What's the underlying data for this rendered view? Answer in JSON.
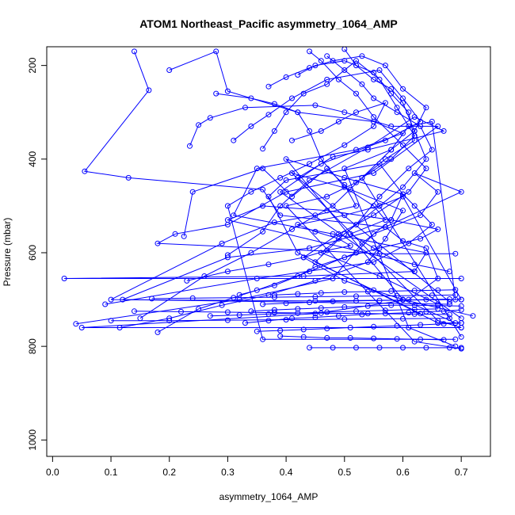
{
  "chart_data": {
    "type": "line",
    "title": "ATOM1 Northeast_Pacific asymmetry_1064_AMP",
    "xlabel": "asymmetry_1064_AMP",
    "ylabel": "Pressure (mbar)",
    "xlim": [
      -0.01,
      0.75
    ],
    "ylim": [
      1035,
      160
    ],
    "y_reversed": true,
    "grid": false,
    "xticks": [
      0.0,
      0.1,
      0.2,
      0.3,
      0.4,
      0.5,
      0.6,
      0.7
    ],
    "xtick_labels": [
      "0.0",
      "0.1",
      "0.2",
      "0.3",
      "0.4",
      "0.5",
      "0.6",
      "0.7"
    ],
    "yticks": [
      200,
      400,
      600,
      800,
      1000
    ],
    "ytick_labels": [
      "200",
      "400",
      "600",
      "800",
      "1000"
    ],
    "series_color": "#0000ff",
    "marker": "open-circle",
    "series": [
      {
        "x": [
          0.14,
          0.165,
          0.055,
          0.13,
          0.36,
          0.39,
          0.57,
          0.6,
          0.64,
          0.66,
          0.61,
          0.45,
          0.05,
          0.7
        ],
        "y": [
          170,
          253,
          426,
          440,
          465,
          520,
          545,
          575,
          590,
          655,
          700,
          730,
          760,
          760
        ]
      },
      {
        "x": [
          0.2,
          0.28,
          0.3,
          0.42,
          0.55,
          0.6,
          0.52,
          0.35,
          0.31,
          0.48,
          0.64,
          0.62,
          0.43,
          0.02,
          0.7
        ],
        "y": [
          210,
          170,
          255,
          300,
          320,
          345,
          380,
          420,
          520,
          560,
          600,
          640,
          650,
          655,
          655
        ]
      },
      {
        "x": [
          0.235,
          0.25,
          0.27,
          0.33,
          0.45,
          0.5,
          0.58,
          0.66,
          0.55,
          0.4,
          0.3,
          0.21,
          0.18,
          0.56,
          0.69
        ],
        "y": [
          372,
          327,
          312,
          290,
          285,
          300,
          330,
          330,
          430,
          470,
          540,
          560,
          580,
          602,
          602
        ]
      },
      {
        "x": [
          0.225,
          0.24,
          0.36,
          0.41,
          0.47,
          0.5,
          0.52,
          0.45,
          0.38,
          0.29,
          0.1,
          0.45,
          0.7
        ],
        "y": [
          565,
          470,
          420,
          480,
          420,
          455,
          500,
          520,
          535,
          580,
          700,
          703,
          700
        ]
      },
      {
        "x": [
          0.18,
          0.25,
          0.35,
          0.44,
          0.52,
          0.55,
          0.63,
          0.66,
          0.62,
          0.7,
          0.57,
          0.44,
          0.3,
          0.12,
          0.68
        ],
        "y": [
          770,
          720,
          680,
          640,
          600,
          560,
          520,
          470,
          430,
          470,
          545,
          590,
          610,
          700,
          710
        ]
      },
      {
        "x": [
          0.09,
          0.35,
          0.55,
          0.61,
          0.65,
          0.62,
          0.6,
          0.5,
          0.4,
          0.6,
          0.72
        ],
        "y": [
          710,
          655,
          620,
          580,
          540,
          500,
          475,
          440,
          400,
          700,
          735
        ]
      },
      {
        "x": [
          0.04,
          0.32,
          0.48,
          0.53,
          0.58,
          0.6,
          0.56,
          0.4,
          0.37,
          0.42,
          0.66,
          0.7
        ],
        "y": [
          752,
          700,
          655,
          580,
          530,
          475,
          410,
          445,
          480,
          600,
          750,
          750
        ]
      },
      {
        "x": [
          0.115,
          0.2,
          0.29,
          0.37,
          0.45,
          0.54,
          0.57,
          0.6,
          0.51,
          0.41,
          0.66,
          0.7
        ],
        "y": [
          760,
          740,
          712,
          690,
          660,
          620,
          570,
          510,
          465,
          430,
          745,
          760
        ]
      },
      {
        "x": [
          0.15,
          0.26,
          0.34,
          0.41,
          0.48,
          0.53,
          0.58,
          0.61,
          0.65,
          0.69
        ],
        "y": [
          740,
          650,
          600,
          550,
          500,
          440,
          380,
          330,
          320,
          700
        ]
      },
      {
        "x": [
          0.3,
          0.36,
          0.39,
          0.44,
          0.54,
          0.62,
          0.67,
          0.54,
          0.48,
          0.42,
          0.68
        ],
        "y": [
          605,
          555,
          500,
          445,
          375,
          310,
          340,
          380,
          395,
          440,
          705
        ]
      },
      {
        "x": [
          0.31,
          0.34,
          0.37,
          0.41,
          0.47,
          0.56,
          0.6,
          0.63,
          0.57,
          0.46,
          0.39,
          0.7
        ],
        "y": [
          360,
          330,
          305,
          270,
          230,
          210,
          270,
          320,
          360,
          410,
          470,
          740
        ]
      },
      {
        "x": [
          0.36,
          0.38,
          0.4,
          0.43,
          0.47,
          0.52,
          0.56,
          0.59,
          0.62,
          0.58,
          0.53,
          0.7
        ],
        "y": [
          378,
          340,
          300,
          260,
          240,
          190,
          230,
          290,
          350,
          400,
          440,
          780
        ]
      },
      {
        "x": [
          0.37,
          0.4,
          0.44,
          0.48,
          0.53,
          0.57,
          0.6,
          0.64,
          0.62,
          0.58,
          0.5,
          0.61,
          0.69
        ],
        "y": [
          245,
          225,
          205,
          190,
          180,
          200,
          250,
          290,
          340,
          380,
          420,
          760,
          800
        ]
      },
      {
        "x": [
          0.42,
          0.45,
          0.5,
          0.55,
          0.58,
          0.61,
          0.62,
          0.57,
          0.52,
          0.47,
          0.4,
          0.62,
          0.7
        ],
        "y": [
          220,
          200,
          190,
          215,
          260,
          300,
          360,
          400,
          450,
          480,
          500,
          790,
          805
        ]
      },
      {
        "x": [
          0.41,
          0.46,
          0.49,
          0.52,
          0.57,
          0.55,
          0.5,
          0.44,
          0.39,
          0.34,
          0.3,
          0.36,
          0.69
        ],
        "y": [
          360,
          340,
          320,
          300,
          280,
          330,
          370,
          410,
          440,
          470,
          500,
          785,
          785
        ]
      },
      {
        "x": [
          0.28,
          0.34,
          0.38,
          0.42,
          0.44,
          0.46,
          0.5,
          0.55,
          0.57,
          0.51,
          0.55,
          0.62
        ],
        "y": [
          260,
          270,
          282,
          300,
          340,
          400,
          460,
          500,
          530,
          560,
          590,
          640
        ]
      },
      {
        "x": [
          0.23,
          0.3,
          0.37,
          0.43,
          0.47,
          0.51,
          0.49,
          0.45,
          0.42,
          0.5,
          0.56,
          0.6,
          0.7
        ],
        "y": [
          660,
          640,
          625,
          610,
          595,
          585,
          570,
          555,
          540,
          520,
          500,
          480,
          700
        ]
      },
      {
        "x": [
          0.32,
          0.38,
          0.42,
          0.45,
          0.5,
          0.56,
          0.63,
          0.66,
          0.58,
          0.47,
          0.36,
          0.3,
          0.62,
          0.68
        ],
        "y": [
          690,
          670,
          650,
          630,
          610,
          590,
          570,
          550,
          530,
          510,
          500,
          530,
          625,
          640
        ]
      },
      {
        "x": [
          0.44,
          0.46,
          0.49,
          0.52,
          0.55,
          0.6,
          0.64,
          0.61,
          0.55,
          0.49,
          0.43,
          0.5,
          0.6,
          0.69
        ],
        "y": [
          170,
          190,
          230,
          260,
          310,
          370,
          420,
          470,
          520,
          560,
          610,
          660,
          700,
          750
        ]
      },
      {
        "x": [
          0.47,
          0.5,
          0.53,
          0.55,
          0.59,
          0.63,
          0.65,
          0.61,
          0.56,
          0.52,
          0.46,
          0.56,
          0.66
        ],
        "y": [
          180,
          210,
          240,
          270,
          300,
          330,
          380,
          420,
          480,
          540,
          600,
          650,
          710
        ]
      },
      {
        "x": [
          0.5,
          0.52,
          0.55,
          0.58,
          0.6,
          0.62,
          0.64,
          0.6,
          0.56,
          0.5,
          0.45,
          0.55,
          0.63
        ],
        "y": [
          165,
          200,
          230,
          250,
          280,
          340,
          400,
          460,
          500,
          560,
          620,
          680,
          730
        ]
      },
      {
        "x": [
          0.33,
          0.37,
          0.41,
          0.45,
          0.49,
          0.53,
          0.57,
          0.61,
          0.64,
          0.67,
          0.7
        ],
        "y": [
          750,
          745,
          740,
          738,
          735,
          732,
          730,
          728,
          726,
          725,
          722
        ]
      },
      {
        "x": [
          0.34,
          0.38,
          0.42,
          0.46,
          0.5,
          0.54,
          0.58,
          0.62,
          0.66,
          0.7
        ],
        "y": [
          725,
          722,
          720,
          718,
          716,
          714,
          712,
          712,
          713,
          714
        ]
      },
      {
        "x": [
          0.36,
          0.4,
          0.44,
          0.48,
          0.52,
          0.56,
          0.6,
          0.64,
          0.68
        ],
        "y": [
          710,
          708,
          706,
          704,
          703,
          702,
          701,
          700,
          699
        ]
      },
      {
        "x": [
          0.38,
          0.42,
          0.46,
          0.5,
          0.54,
          0.58,
          0.62,
          0.66,
          0.69
        ],
        "y": [
          690,
          688,
          686,
          684,
          683,
          682,
          681,
          680,
          679
        ]
      },
      {
        "x": [
          0.35,
          0.39,
          0.43,
          0.47,
          0.51,
          0.55,
          0.59,
          0.63,
          0.67,
          0.7
        ],
        "y": [
          768,
          766,
          764,
          762,
          760,
          758,
          756,
          754,
          752,
          750
        ]
      },
      {
        "x": [
          0.44,
          0.48,
          0.52,
          0.56,
          0.6,
          0.64,
          0.68,
          0.7
        ],
        "y": [
          803,
          803,
          803,
          803,
          803,
          803,
          803,
          803
        ]
      },
      {
        "x": [
          0.39,
          0.43,
          0.47,
          0.51,
          0.55,
          0.59,
          0.63,
          0.67
        ],
        "y": [
          778,
          780,
          782,
          782,
          783,
          784,
          785,
          786
        ]
      },
      {
        "x": [
          0.27,
          0.32,
          0.37,
          0.42,
          0.47,
          0.52,
          0.57,
          0.62,
          0.66
        ],
        "y": [
          735,
          733,
          731,
          729,
          727,
          725,
          723,
          721,
          720
        ]
      },
      {
        "x": [
          0.17,
          0.24,
          0.31,
          0.38,
          0.45,
          0.52,
          0.59,
          0.65,
          0.69
        ],
        "y": [
          698,
          697,
          696,
          695,
          694,
          693,
          692,
          691,
          690
        ]
      },
      {
        "x": [
          0.14,
          0.22,
          0.3,
          0.38,
          0.46,
          0.54,
          0.62,
          0.68
        ],
        "y": [
          725,
          726,
          727,
          728,
          729,
          730,
          731,
          732
        ]
      },
      {
        "x": [
          0.1,
          0.2,
          0.3,
          0.4,
          0.5,
          0.6,
          0.68
        ],
        "y": [
          745,
          745,
          744,
          743,
          742,
          741,
          740
        ]
      }
    ]
  }
}
